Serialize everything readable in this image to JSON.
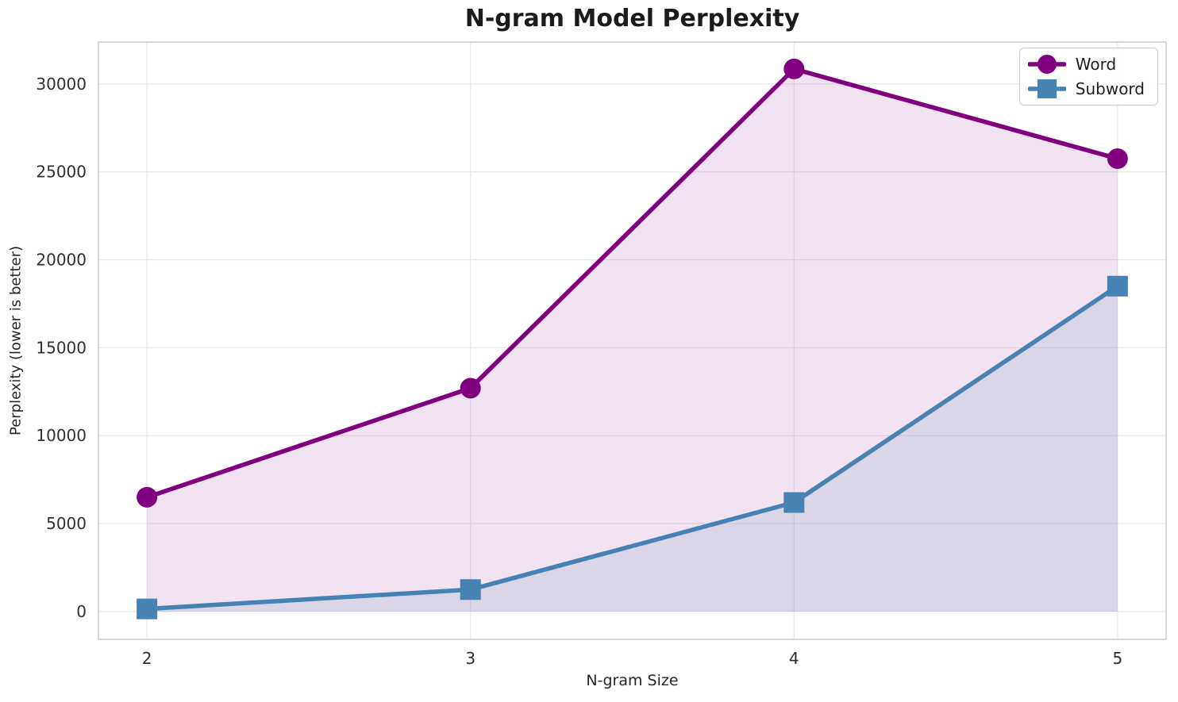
{
  "chart_data": {
    "type": "line",
    "title": "N-gram Model Perplexity",
    "xlabel": "N-gram Size",
    "ylabel": "Perplexity (lower is better)",
    "x": [
      2,
      3,
      4,
      5
    ],
    "series": [
      {
        "name": "Word",
        "marker": "circle",
        "color": "#800080",
        "fill_alpha": 0.11,
        "values": [
          6500,
          12700,
          30850,
          25750
        ]
      },
      {
        "name": "Subword",
        "marker": "square",
        "color": "#4682B4",
        "fill_alpha": 0.13,
        "values": [
          150,
          1250,
          6200,
          18500
        ]
      }
    ],
    "xticks": [
      "2",
      "3",
      "4",
      "5"
    ],
    "xtick_values": [
      2,
      3,
      4,
      5
    ],
    "yticks": [
      "0",
      "5000",
      "10000",
      "15000",
      "20000",
      "25000",
      "30000"
    ],
    "ytick_values": [
      0,
      5000,
      10000,
      15000,
      20000,
      25000,
      30000
    ],
    "xlim": [
      1.85,
      5.15
    ],
    "ylim": [
      -1580,
      32380
    ],
    "grid": true,
    "legend_position": "upper right",
    "area_fill_to_zero": true,
    "style": {
      "grid_color": "#e8e8e8",
      "spine_color": "#cccccc",
      "tick_label_color": "#303030",
      "title_color": "#1b1b1b",
      "axis_label_color": "#262626",
      "legend_border_color": "#cccccc",
      "line_width": 5.5,
      "marker_size": 26
    }
  }
}
